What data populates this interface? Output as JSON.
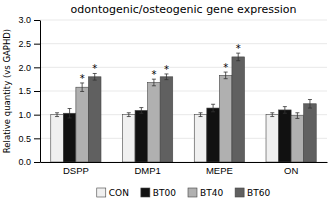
{
  "chart_data": {
    "type": "bar",
    "title": "odontogenic/osteogenic gene expression",
    "y_label": "Relative quantity (vs GAPHD)",
    "categories": [
      "DSPP",
      "DMP1",
      "MEPE",
      "ON"
    ],
    "series": [
      {
        "name": "CON",
        "color": "#f0f0f0",
        "values": [
          1.0,
          1.0,
          1.0,
          1.0
        ],
        "errors": [
          0.04,
          0.04,
          0.04,
          0.04
        ],
        "significance": [
          false,
          false,
          false,
          false
        ]
      },
      {
        "name": "BT00",
        "color": "#111111",
        "values": [
          1.03,
          1.09,
          1.14,
          1.1
        ],
        "errors": [
          0.1,
          0.06,
          0.08,
          0.07
        ],
        "significance": [
          false,
          false,
          false,
          false
        ]
      },
      {
        "name": "BT40",
        "color": "#b0b0b0",
        "values": [
          1.58,
          1.68,
          1.83,
          0.98
        ],
        "errors": [
          0.09,
          0.07,
          0.07,
          0.06
        ],
        "significance": [
          true,
          true,
          true,
          false
        ]
      },
      {
        "name": "BT60",
        "color": "#606060",
        "values": [
          1.8,
          1.8,
          2.22,
          1.23
        ],
        "errors": [
          0.07,
          0.06,
          0.08,
          0.09
        ],
        "significance": [
          true,
          true,
          true,
          false
        ]
      }
    ],
    "significance_label": "*",
    "ylim": [
      0,
      3.0
    ],
    "yticks": [
      {
        "value": 0,
        "label": "0.0"
      },
      0.5,
      {
        "value": 1.0,
        "label": "1.0"
      },
      1.5,
      {
        "value": 2.0,
        "label": "2.0"
      },
      2.5,
      {
        "value": 3.0,
        "label": "3.0"
      }
    ],
    "grid": true,
    "legend": "bottom"
  }
}
